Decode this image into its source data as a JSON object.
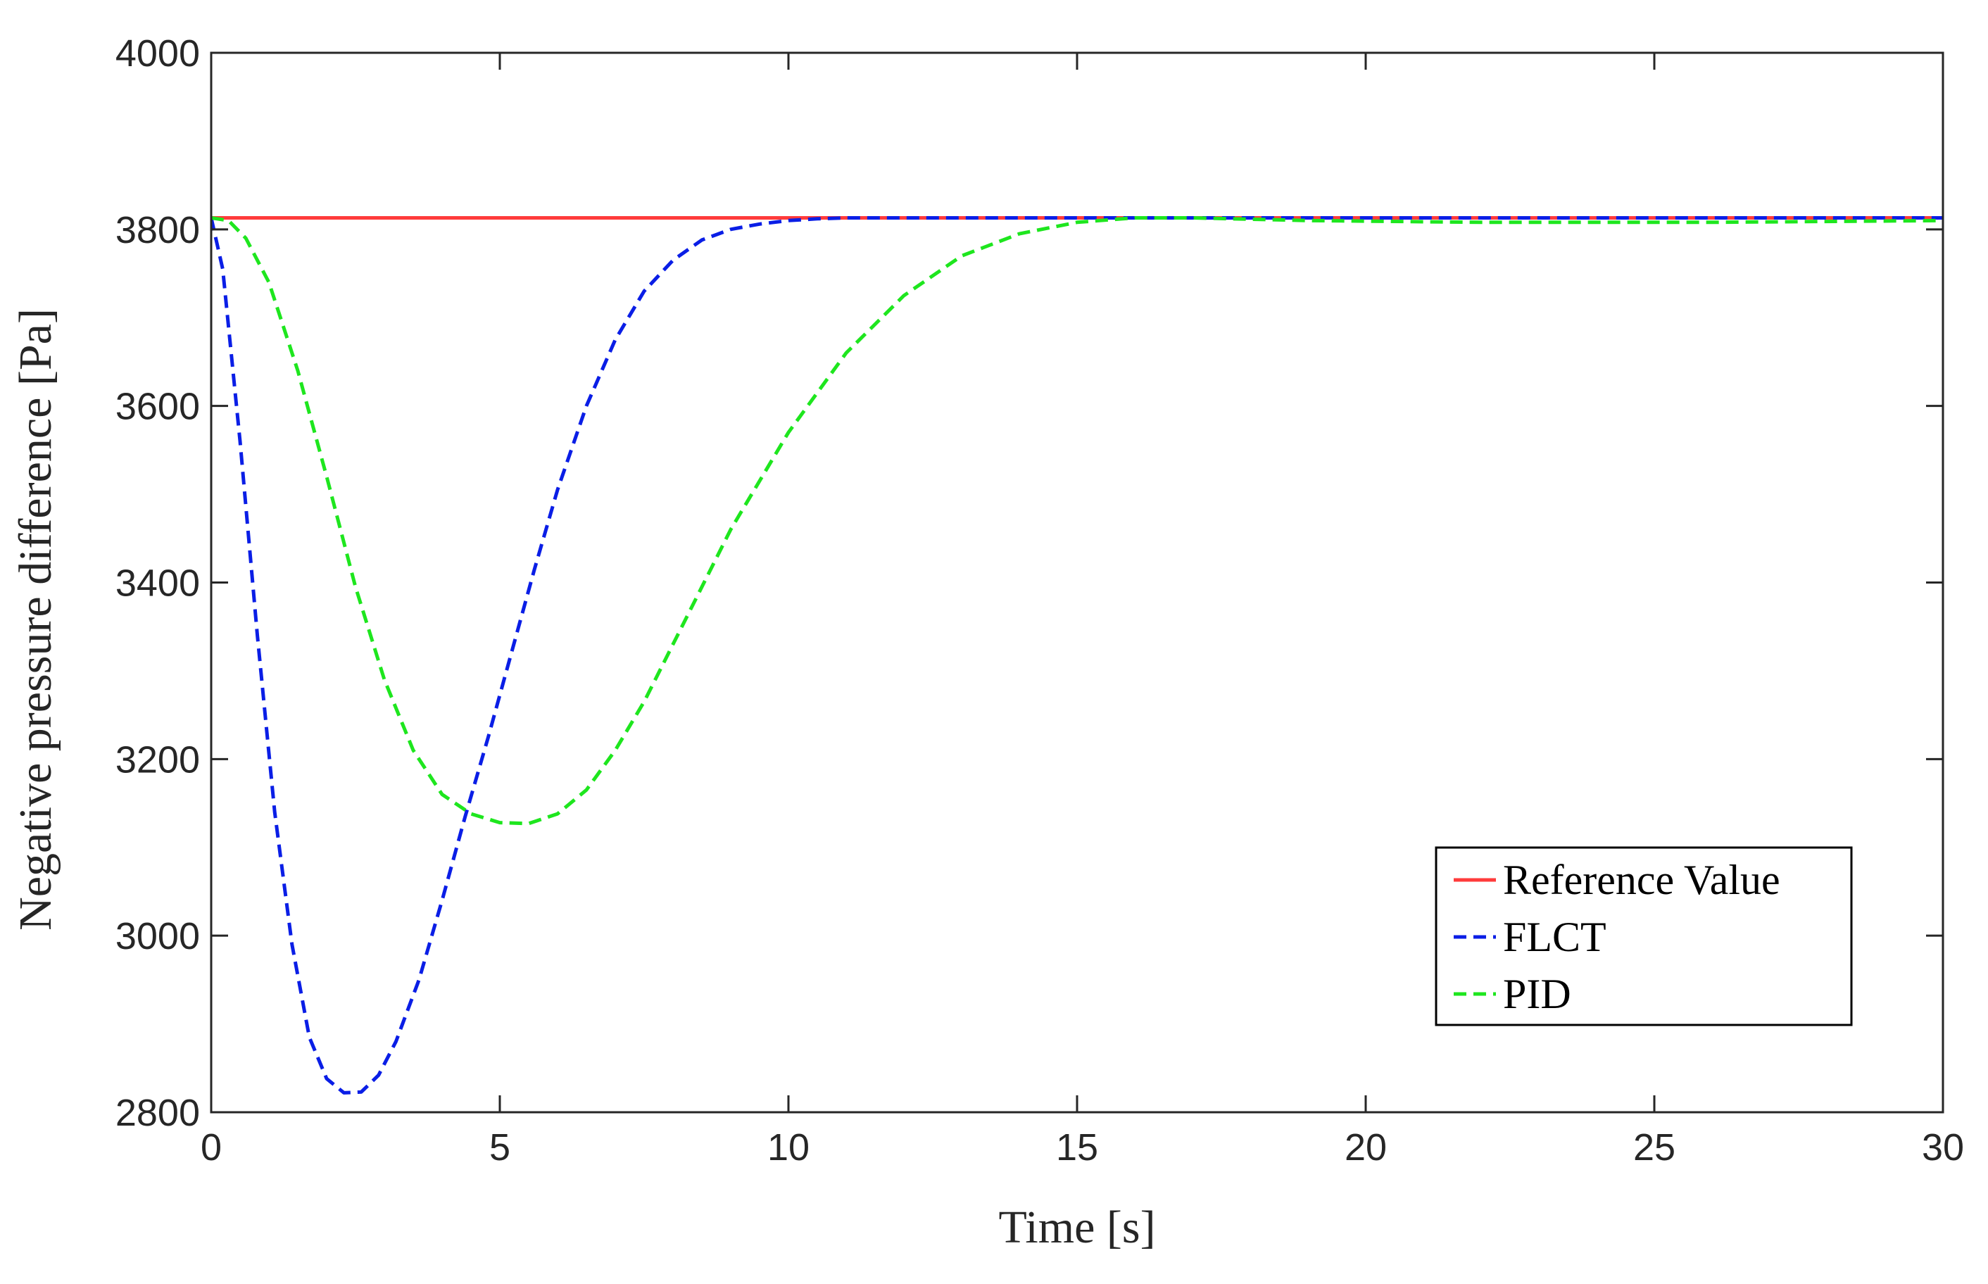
{
  "chart_data": {
    "type": "line",
    "title": "",
    "xlabel": "Time [s]",
    "ylabel": "Negative pressure difference [Pa]",
    "xlim": [
      0,
      30
    ],
    "ylim": [
      2800,
      4000
    ],
    "xticks": [
      0,
      5,
      10,
      15,
      20,
      25,
      30
    ],
    "yticks": [
      2800,
      3000,
      3200,
      3400,
      3600,
      3800,
      4000
    ],
    "grid": false,
    "legend_position": "bottom-right",
    "series": [
      {
        "name": "Reference Value",
        "color": "#ff3b3b",
        "style": "solid",
        "x": [
          0,
          30
        ],
        "y": [
          3813,
          3813
        ]
      },
      {
        "name": "FLCT",
        "color": "#0a1ee6",
        "style": "dashed",
        "x": [
          0,
          0.2,
          0.5,
          0.8,
          1.1,
          1.4,
          1.7,
          2.0,
          2.3,
          2.6,
          2.9,
          3.2,
          3.6,
          4.0,
          4.4,
          4.8,
          5.2,
          5.6,
          6.0,
          6.5,
          7.0,
          7.5,
          8.0,
          8.5,
          9.0,
          9.5,
          10.0,
          10.5,
          11.0,
          12.0,
          14.0,
          30.0
        ],
        "y": [
          3813,
          3755,
          3560,
          3340,
          3140,
          2990,
          2885,
          2838,
          2822,
          2823,
          2842,
          2880,
          2950,
          3040,
          3135,
          3225,
          3320,
          3415,
          3505,
          3600,
          3675,
          3730,
          3765,
          3788,
          3800,
          3806,
          3810,
          3812,
          3813,
          3813,
          3813,
          3813
        ]
      },
      {
        "name": "PID",
        "color": "#1ee61e",
        "style": "dashed",
        "x": [
          0,
          0.3,
          0.6,
          1.0,
          1.5,
          2.0,
          2.5,
          3.0,
          3.5,
          4.0,
          4.5,
          5.0,
          5.5,
          6.0,
          6.5,
          7.0,
          7.5,
          8.0,
          8.5,
          9.0,
          10.0,
          11.0,
          12.0,
          13.0,
          14.0,
          15.0,
          16.0,
          17.0,
          19.0,
          22.0,
          26.0,
          30.0
        ],
        "y": [
          3813,
          3810,
          3790,
          3740,
          3640,
          3520,
          3395,
          3290,
          3210,
          3160,
          3138,
          3128,
          3127,
          3138,
          3165,
          3210,
          3265,
          3330,
          3395,
          3460,
          3570,
          3660,
          3725,
          3770,
          3795,
          3808,
          3813,
          3813,
          3810,
          3808,
          3808,
          3810
        ]
      }
    ]
  }
}
